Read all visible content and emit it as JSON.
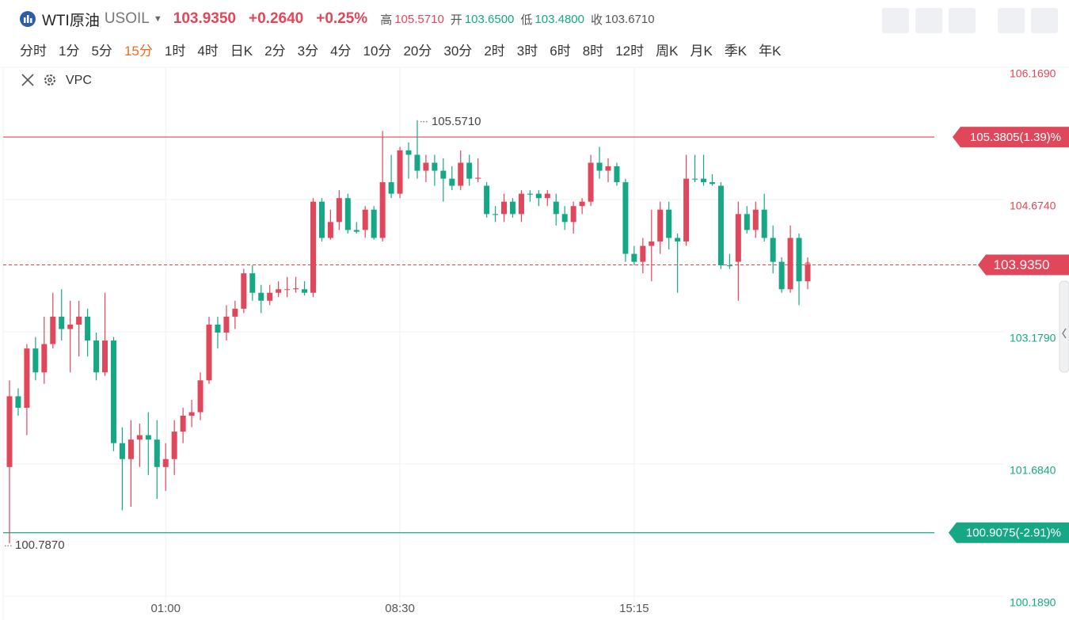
{
  "header": {
    "symbol": "WTI原油",
    "code": "USOIL",
    "price": "103.9350",
    "change": "+0.2640",
    "change_pct": "+0.25%",
    "stats": [
      {
        "label": "高",
        "value": "105.5710",
        "color": "#e0475a"
      },
      {
        "label": "开",
        "value": "103.6500",
        "color": "#16a884"
      },
      {
        "label": "低",
        "value": "103.4800",
        "color": "#16a884"
      },
      {
        "label": "收",
        "value": "103.6710",
        "color": "#555555"
      }
    ]
  },
  "timeframes": [
    "分时",
    "1分",
    "5分",
    "15分",
    "1时",
    "4时",
    "日K",
    "2分",
    "3分",
    "4分",
    "10分",
    "20分",
    "30分",
    "2时",
    "3时",
    "6时",
    "8时",
    "12时",
    "周K",
    "月K",
    "季K",
    "年K"
  ],
  "active_timeframe": 3,
  "indicator": "VPC",
  "chart_data": {
    "type": "candlestick",
    "up_color": "#e0475a",
    "down_color": "#16a884",
    "grid": true,
    "ylim": [
      100.189,
      106.169
    ],
    "yticks": [
      {
        "value": 100.189,
        "label": "100.1890"
      },
      {
        "value": 101.684,
        "label": "101.6840"
      },
      {
        "value": 103.179,
        "label": "103.1790"
      },
      {
        "value": 104.674,
        "label": "104.6740"
      },
      {
        "value": 106.169,
        "label": "106.1690"
      }
    ],
    "price_lines": [
      {
        "value": 105.3805,
        "label": "105.3805(1.39)%",
        "color": "#e0475a"
      },
      {
        "value": 100.9075,
        "label": "100.9075(-2.91)%",
        "color": "#16a884"
      }
    ],
    "last_price": {
      "value": 103.935,
      "label": "103.9350"
    },
    "high_mark": {
      "value": 105.571,
      "label": "105.5710"
    },
    "low_mark": {
      "value": 100.787,
      "label": "100.7870"
    },
    "categories": [
      null,
      null,
      null,
      null,
      null,
      null,
      null,
      null,
      null,
      null,
      null,
      null,
      null,
      null,
      null,
      null,
      null,
      null,
      "01:00",
      null,
      null,
      null,
      null,
      null,
      null,
      null,
      null,
      null,
      null,
      null,
      null,
      null,
      null,
      null,
      null,
      null,
      null,
      null,
      null,
      null,
      null,
      null,
      null,
      null,
      null,
      "08:30",
      null,
      null,
      null,
      null,
      null,
      null,
      null,
      null,
      null,
      null,
      null,
      null,
      null,
      null,
      null,
      null,
      null,
      null,
      null,
      null,
      null,
      null,
      null,
      null,
      null,
      null,
      "15:15",
      null,
      null,
      null,
      null,
      null,
      null,
      null,
      null,
      null,
      null,
      null,
      null,
      null,
      null,
      null,
      null,
      null,
      null,
      null,
      null
    ],
    "ohlc": [
      [
        101.65,
        102.63,
        100.787,
        102.45
      ],
      [
        102.45,
        102.54,
        102.23,
        102.32
      ],
      [
        102.32,
        103.04,
        102.01,
        102.99
      ],
      [
        102.99,
        103.12,
        102.63,
        102.72
      ],
      [
        102.72,
        103.35,
        102.59,
        103.04
      ],
      [
        103.04,
        103.62,
        102.99,
        103.35
      ],
      [
        103.35,
        103.66,
        103.08,
        103.21
      ],
      [
        103.21,
        103.53,
        102.72,
        103.26
      ],
      [
        103.26,
        103.53,
        102.9,
        103.35
      ],
      [
        103.35,
        103.44,
        102.9,
        103.08
      ],
      [
        103.08,
        103.17,
        102.63,
        102.72
      ],
      [
        102.72,
        103.62,
        102.68,
        103.08
      ],
      [
        103.08,
        103.12,
        101.83,
        101.92
      ],
      [
        101.92,
        102.1,
        101.16,
        101.74
      ],
      [
        101.74,
        102.18,
        101.2,
        101.96
      ],
      [
        101.96,
        102.14,
        101.65,
        102.01
      ],
      [
        102.01,
        102.27,
        101.56,
        101.96
      ],
      [
        101.96,
        102.18,
        101.29,
        101.65
      ],
      [
        101.65,
        101.92,
        101.38,
        101.74
      ],
      [
        101.74,
        102.18,
        101.56,
        102.05
      ],
      [
        102.05,
        102.32,
        101.92,
        102.23
      ],
      [
        102.23,
        102.41,
        102.1,
        102.27
      ],
      [
        102.27,
        102.72,
        102.18,
        102.63
      ],
      [
        102.63,
        103.35,
        102.59,
        103.26
      ],
      [
        103.26,
        103.35,
        102.99,
        103.17
      ],
      [
        103.17,
        103.48,
        103.08,
        103.35
      ],
      [
        103.35,
        103.53,
        103.21,
        103.44
      ],
      [
        103.44,
        103.89,
        103.39,
        103.84
      ],
      [
        103.84,
        103.93,
        103.53,
        103.62
      ],
      [
        103.62,
        103.71,
        103.39,
        103.53
      ],
      [
        103.53,
        103.71,
        103.48,
        103.62
      ],
      [
        103.62,
        103.75,
        103.57,
        103.66
      ],
      [
        103.66,
        103.8,
        103.57,
        103.66
      ],
      [
        103.66,
        103.8,
        103.62,
        103.67
      ],
      [
        103.66,
        103.75,
        103.59,
        103.62
      ],
      [
        103.62,
        104.69,
        103.57,
        104.65
      ],
      [
        104.65,
        104.69,
        104.2,
        104.24
      ],
      [
        104.24,
        104.56,
        104.22,
        104.42
      ],
      [
        104.42,
        104.78,
        104.33,
        104.69
      ],
      [
        104.69,
        104.74,
        104.29,
        104.33
      ],
      [
        104.33,
        104.42,
        104.29,
        104.31
      ],
      [
        104.33,
        104.6,
        104.24,
        104.56
      ],
      [
        104.56,
        104.6,
        104.22,
        104.24
      ],
      [
        104.24,
        105.45,
        104.2,
        104.87
      ],
      [
        104.87,
        105.18,
        104.69,
        104.74
      ],
      [
        104.74,
        105.27,
        104.69,
        105.23
      ],
      [
        105.23,
        105.32,
        104.91,
        105.18
      ],
      [
        105.18,
        105.571,
        104.91,
        105.0
      ],
      [
        105.0,
        105.18,
        104.87,
        105.09
      ],
      [
        105.09,
        105.18,
        104.83,
        105.0
      ],
      [
        105.0,
        105.14,
        104.65,
        104.91
      ],
      [
        104.91,
        105.05,
        104.78,
        104.83
      ],
      [
        104.83,
        105.23,
        104.78,
        105.09
      ],
      [
        105.09,
        105.18,
        104.83,
        104.91
      ],
      [
        104.91,
        105.14,
        104.87,
        104.92
      ],
      [
        104.83,
        104.87,
        104.47,
        104.51
      ],
      [
        104.51,
        104.6,
        104.42,
        104.5
      ],
      [
        104.51,
        104.74,
        104.42,
        104.65
      ],
      [
        104.65,
        104.69,
        104.47,
        104.51
      ],
      [
        104.51,
        104.78,
        104.42,
        104.74
      ],
      [
        104.74,
        104.78,
        104.65,
        104.73
      ],
      [
        104.74,
        104.78,
        104.6,
        104.69
      ],
      [
        104.69,
        104.78,
        104.6,
        104.74
      ],
      [
        104.65,
        104.74,
        104.38,
        104.51
      ],
      [
        104.51,
        104.6,
        104.33,
        104.42
      ],
      [
        104.42,
        104.65,
        104.29,
        104.6
      ],
      [
        104.6,
        104.69,
        104.51,
        104.65
      ],
      [
        104.65,
        105.18,
        104.6,
        105.09
      ],
      [
        105.09,
        105.27,
        104.91,
        105.0
      ],
      [
        105.0,
        105.14,
        104.87,
        105.05
      ],
      [
        105.05,
        105.09,
        104.83,
        104.87
      ],
      [
        104.87,
        104.91,
        103.97,
        104.06
      ],
      [
        104.06,
        104.15,
        103.93,
        103.97
      ],
      [
        103.97,
        104.24,
        103.84,
        104.15
      ],
      [
        104.15,
        104.56,
        103.75,
        104.2
      ],
      [
        104.2,
        104.65,
        104.06,
        104.56
      ],
      [
        104.56,
        104.65,
        104.11,
        104.24
      ],
      [
        104.24,
        104.29,
        103.62,
        104.2
      ],
      [
        104.2,
        105.18,
        104.15,
        104.91
      ],
      [
        104.91,
        105.18,
        104.87,
        104.9
      ],
      [
        104.91,
        105.18,
        104.83,
        104.87
      ],
      [
        104.87,
        104.96,
        104.83,
        104.85
      ],
      [
        104.83,
        104.87,
        103.89,
        103.93
      ],
      [
        103.93,
        104.06,
        103.89,
        103.92
      ],
      [
        103.97,
        104.65,
        103.53,
        104.51
      ],
      [
        104.51,
        104.6,
        104.29,
        104.33
      ],
      [
        104.33,
        104.65,
        104.24,
        104.56
      ],
      [
        104.56,
        104.74,
        104.2,
        104.24
      ],
      [
        104.24,
        104.38,
        103.84,
        103.97
      ],
      [
        103.97,
        104.02,
        103.62,
        103.66
      ],
      [
        103.66,
        104.38,
        103.62,
        104.24
      ],
      [
        104.24,
        104.29,
        103.48,
        103.75
      ],
      [
        103.75,
        104.02,
        103.66,
        103.935
      ]
    ]
  }
}
